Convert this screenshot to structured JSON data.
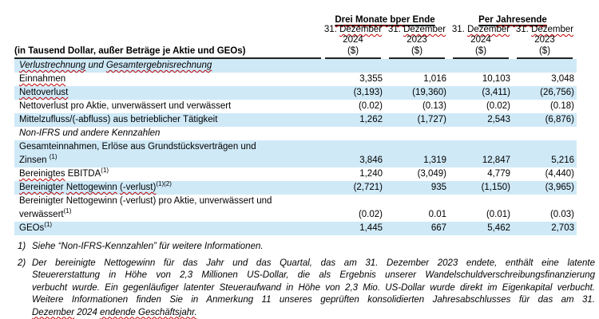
{
  "colors": {
    "row_shaded": "#cfe9f7",
    "header_border": "#222222",
    "spellcheck_underline": "#c00000"
  },
  "table": {
    "row_header_label": "(in Tausend Dollar, außer Beträge je Aktie und GEOs)",
    "groups": [
      {
        "parts": [
          {
            "t": "Drei Monate bper",
            "sq": true
          },
          {
            "t": " Ende"
          }
        ]
      },
      {
        "parts": [
          {
            "t": "Per "
          },
          {
            "t": "Jahresende",
            "sq": true
          }
        ]
      }
    ],
    "columns": [
      {
        "date_parts": [
          {
            "t": "31. "
          },
          {
            "t": "Dezember",
            "sq": true
          }
        ],
        "year": "2024",
        "unit": "($)"
      },
      {
        "date_parts": [
          {
            "t": "31. "
          },
          {
            "t": "Dezember",
            "sq": true
          }
        ],
        "year": "2023",
        "unit": "($)"
      },
      {
        "date_parts": [
          {
            "t": "31. "
          },
          {
            "t": "Dezember",
            "sq": true
          }
        ],
        "year": "2024",
        "unit": "($)"
      },
      {
        "date_parts": [
          {
            "t": "31. "
          },
          {
            "t": "Dezember",
            "sq": true
          }
        ],
        "year": "2023",
        "unit": "($)"
      }
    ],
    "rows": [
      {
        "type": "section",
        "shaded": true,
        "parts": [
          {
            "t": "Verlustrechnung",
            "sq": true
          },
          {
            "t": " und "
          },
          {
            "t": "Gesamtergebnisrechnung",
            "sq": true
          }
        ]
      },
      {
        "type": "data",
        "shaded": false,
        "parts": [
          {
            "t": "Einnahmen",
            "sq": true
          }
        ],
        "values": [
          "3,355",
          "1,016",
          "10,103",
          "3,048"
        ]
      },
      {
        "type": "data",
        "shaded": true,
        "parts": [
          {
            "t": "Nettoverlust",
            "sq": true
          }
        ],
        "values": [
          "(3,193)",
          "(19,360)",
          "(3,411)",
          "(26,756)"
        ]
      },
      {
        "type": "data",
        "shaded": false,
        "parts": [
          {
            "t": "Nettoverlust pro Aktie, unverwässert und verwässert"
          }
        ],
        "values": [
          "(0.02)",
          "(0.13)",
          "(0.02)",
          "(0.18)"
        ]
      },
      {
        "type": "data",
        "shaded": true,
        "parts": [
          {
            "t": "Mittelzufluss/(-abfluss) aus betrieblicher Tätigkeit"
          }
        ],
        "values": [
          "1,262",
          "(1,727)",
          "2,543",
          "(6,876)"
        ]
      },
      {
        "type": "section",
        "shaded": false,
        "parts": [
          {
            "t": "Non-IFRS und andere Kennzahlen"
          }
        ]
      },
      {
        "type": "data",
        "shaded": true,
        "parts": [
          {
            "t": "Gesamteinnahmen, Erlöse aus Grundstücksverträgen und",
            "br": true
          },
          {
            "t": "Zinsen "
          },
          {
            "t": "(1)",
            "sup": true
          }
        ],
        "values": [
          "3,846",
          "1,319",
          "12,847",
          "5,216"
        ]
      },
      {
        "type": "data",
        "shaded": false,
        "parts": [
          {
            "t": "Bereinigtes",
            "sq": true
          },
          {
            "t": " EBITDA"
          },
          {
            "t": "(1)",
            "sup": true
          }
        ],
        "values": [
          "1,240",
          "(3,049)",
          "4,779",
          "(4,440)"
        ]
      },
      {
        "type": "data",
        "shaded": true,
        "parts": [
          {
            "t": "Bereinigter",
            "sq": true
          },
          {
            "t": " "
          },
          {
            "t": "Nettogewinn",
            "sq": true
          },
          {
            "t": " "
          },
          {
            "t": "(-verlust)",
            "sq": true
          },
          {
            "t": "(1)(2)",
            "sup": true
          }
        ],
        "values": [
          "(2,721)",
          "935",
          "(1,150)",
          "(3,965)"
        ]
      },
      {
        "type": "data",
        "shaded": false,
        "parts": [
          {
            "t": "Bereinigter Nettogewinn (-verlust) pro Aktie, unverwässert und",
            "br": true
          },
          {
            "t": "verwässert"
          },
          {
            "t": "(1)",
            "sup": true
          }
        ],
        "values": [
          "(0.02)",
          "0.01",
          "(0.01)",
          "(0.03)"
        ]
      },
      {
        "type": "data",
        "shaded": true,
        "parts": [
          {
            "t": "GEOs"
          },
          {
            "t": "(1)",
            "sup": true
          }
        ],
        "values": [
          "1,445",
          "667",
          "5,462",
          "2,703"
        ]
      }
    ]
  },
  "footnotes": [
    {
      "marker": "1)",
      "lines": [
        {
          "justify": false,
          "parts": [
            {
              "t": "Siehe “Non-IFRS-Kennzahlen” für weitere Informationen."
            }
          ]
        }
      ]
    },
    {
      "marker": "2)",
      "lines": [
        {
          "justify": true,
          "parts": [
            {
              "t": "Der bereinigte Nettogewinn für das Jahr und das Quartal, das am 31. Dezember 2023 endete, enthält eine latente"
            }
          ]
        },
        {
          "justify": true,
          "parts": [
            {
              "t": "Steuererstattung in Höhe von 2,3 Millionen US-Dollar, die als Ergebnis unserer Wandelschuldverschreibungsfinanzierung"
            }
          ]
        },
        {
          "justify": true,
          "parts": [
            {
              "t": "verbucht wurde. Ein gegenläufiger latenter Steueraufwand in Höhe von 2,3 Mio. US-Dollar wurde direkt im Eigenkapital verbucht."
            }
          ]
        },
        {
          "justify": true,
          "parts": [
            {
              "t": "Weitere Informationen finden Sie in Anmerkung 11 unseres geprüften konsolidierten Jahresabschlusses für das am 31."
            }
          ]
        },
        {
          "justify": false,
          "parts": [
            {
              "t": "Dezember",
              "sq": true
            },
            {
              "t": " 2024 "
            },
            {
              "t": "endende Geschäftsjahr.",
              "sq": true
            }
          ]
        }
      ]
    }
  ]
}
